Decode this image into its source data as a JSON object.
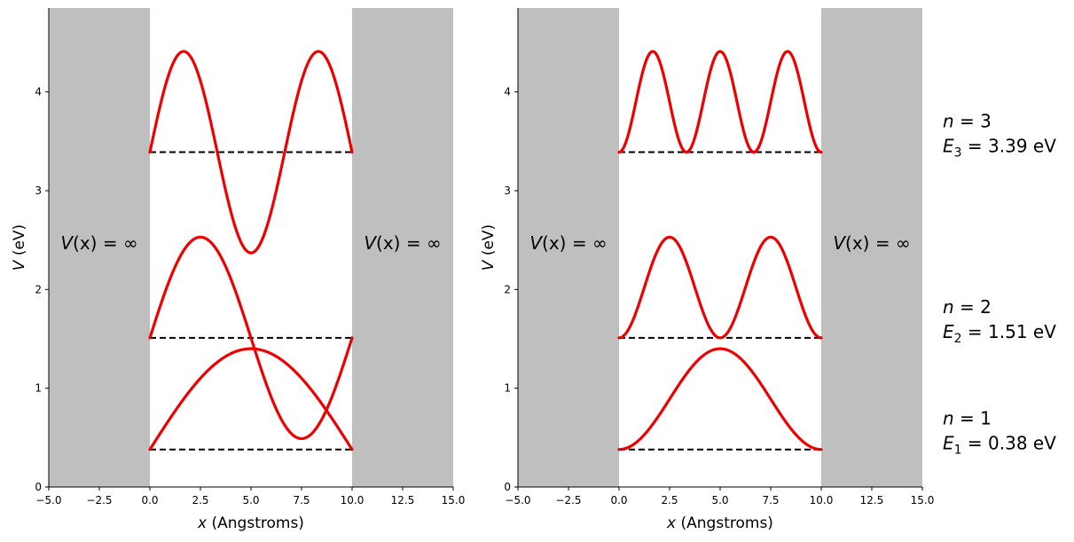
{
  "chart_data": [
    {
      "type": "line",
      "title": "",
      "xlabel_var": "x",
      "xlabel_unit": " (Angstroms)",
      "ylabel_var": "V",
      "ylabel_unit": " (eV)",
      "xlim": [
        -5.0,
        15.0
      ],
      "ylim": [
        0,
        4.85
      ],
      "xticks": [
        -5.0,
        -2.5,
        0.0,
        2.5,
        5.0,
        7.5,
        10.0,
        12.5,
        15.0
      ],
      "xtick_labels": [
        "−5.0",
        "−2.5",
        "0.0",
        "2.5",
        "5.0",
        "7.5",
        "10.0",
        "12.5",
        "15.0"
      ],
      "yticks": [
        0,
        1,
        2,
        3,
        4
      ],
      "ytick_labels": [
        "0",
        "1",
        "2",
        "3",
        "4"
      ],
      "walls": [
        {
          "x_start": -5.0,
          "x_end": 0.0,
          "color": "#bfbfbf"
        },
        {
          "x_start": 10.0,
          "x_end": 15.0,
          "color": "#bfbfbf"
        }
      ],
      "wall_label": {
        "var": "V",
        "arg": "(x)",
        "rest": " = ∞"
      },
      "well_width": 10.0,
      "plot_mode": "psi",
      "amplitude": 1.02,
      "levels": [
        {
          "n": 1,
          "energy": 0.38
        },
        {
          "n": 2,
          "energy": 1.51
        },
        {
          "n": 3,
          "energy": 3.39
        }
      ],
      "curve_color": "#ee0000",
      "level_line_color": "#000000",
      "level_line_style": "dashed"
    },
    {
      "type": "line",
      "title": "",
      "xlabel_var": "x",
      "xlabel_unit": " (Angstroms)",
      "ylabel_var": "V",
      "ylabel_unit": " (eV)",
      "xlim": [
        -5.0,
        15.0
      ],
      "ylim": [
        0,
        4.85
      ],
      "xticks": [
        -5.0,
        -2.5,
        0.0,
        2.5,
        5.0,
        7.5,
        10.0,
        12.5,
        15.0
      ],
      "xtick_labels": [
        "−5.0",
        "−2.5",
        "0.0",
        "2.5",
        "5.0",
        "7.5",
        "10.0",
        "12.5",
        "15.0"
      ],
      "yticks": [
        0,
        1,
        2,
        3,
        4
      ],
      "ytick_labels": [
        "0",
        "1",
        "2",
        "3",
        "4"
      ],
      "walls": [
        {
          "x_start": -5.0,
          "x_end": 0.0,
          "color": "#bfbfbf"
        },
        {
          "x_start": 10.0,
          "x_end": 15.0,
          "color": "#bfbfbf"
        }
      ],
      "wall_label": {
        "var": "V",
        "arg": "(x)",
        "rest": " = ∞"
      },
      "well_width": 10.0,
      "plot_mode": "psi_squared",
      "amplitude": 1.02,
      "levels": [
        {
          "n": 1,
          "energy": 0.38
        },
        {
          "n": 2,
          "energy": 1.51
        },
        {
          "n": 3,
          "energy": 3.39
        }
      ],
      "curve_color": "#ee0000",
      "level_line_color": "#000000",
      "level_line_style": "dashed"
    }
  ],
  "level_annotations": [
    {
      "n_var": "n",
      "n_text": " = 3",
      "e_var": "E",
      "e_sub": "3",
      "e_text": " = 3.39 eV",
      "energy": 3.39
    },
    {
      "n_var": "n",
      "n_text": " = 2",
      "e_var": "E",
      "e_sub": "2",
      "e_text": " = 1.51 eV",
      "energy": 1.51
    },
    {
      "n_var": "n",
      "n_text": " = 1",
      "e_var": "E",
      "e_sub": "1",
      "e_text": " = 0.38 eV",
      "energy": 0.38
    }
  ]
}
